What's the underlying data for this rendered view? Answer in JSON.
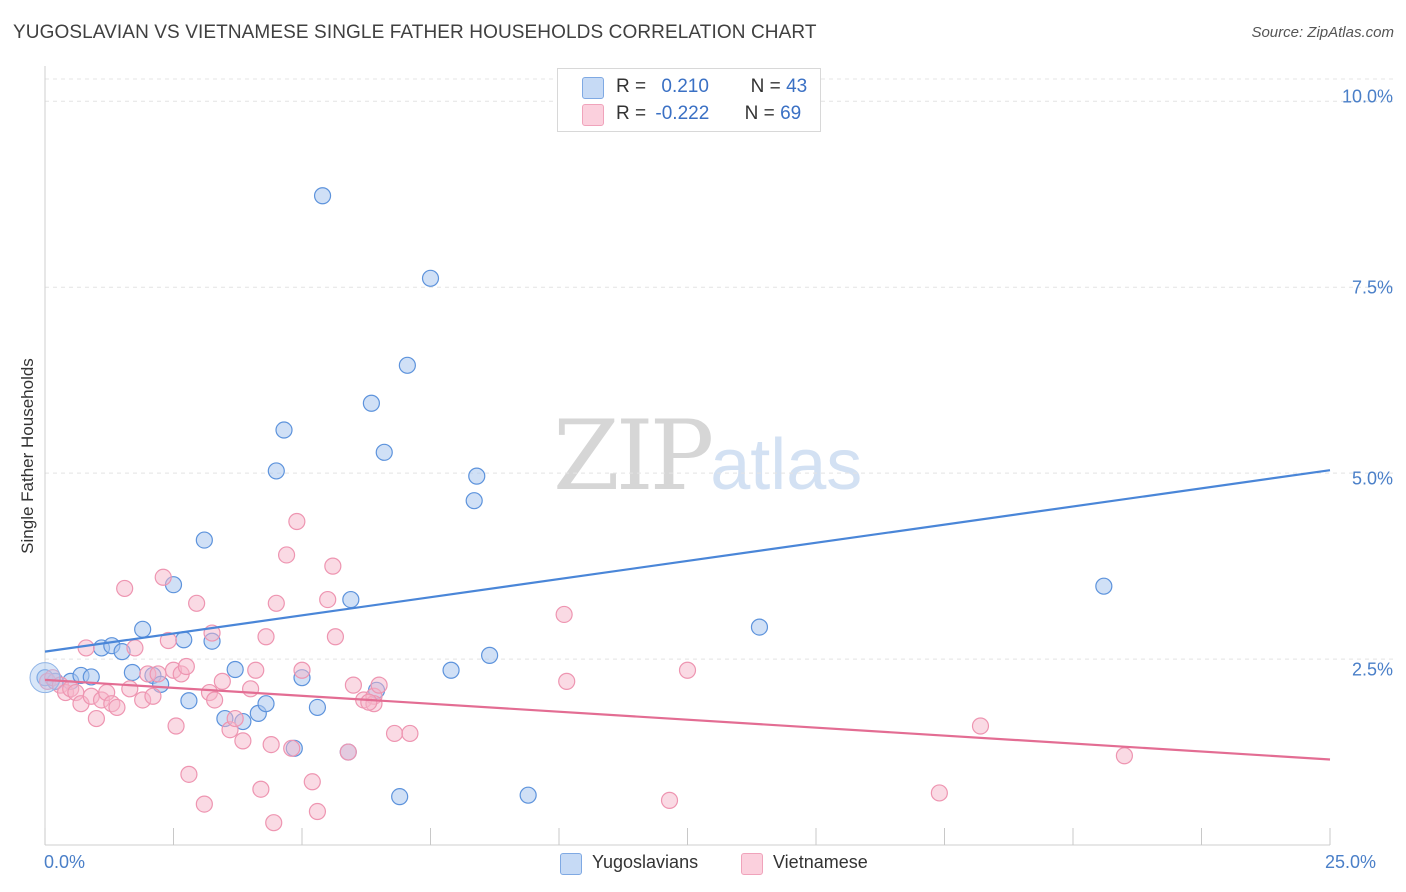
{
  "header": {
    "title": "YUGOSLAVIAN VS VIETNAMESE SINGLE FATHER HOUSEHOLDS CORRELATION CHART",
    "source": "Source: ZipAtlas.com"
  },
  "watermark": {
    "zip": "ZIP",
    "atlas": "atlas"
  },
  "legend": {
    "rows": [
      {
        "r_label": "R =",
        "r_value": "0.210",
        "n_label": "N =",
        "n_value": "43",
        "color": "#a9c7ef"
      },
      {
        "r_label": "R =",
        "r_value": "-0.222",
        "n_label": "N =",
        "n_value": "69",
        "color": "#f6b6c9"
      }
    ]
  },
  "bottom_legend": [
    {
      "label": "Yugoslavians",
      "color": "#a9c7ef"
    },
    {
      "label": "Vietnamese",
      "color": "#f6b6c9"
    }
  ],
  "axes": {
    "ylabel": "Single Father Households",
    "yticks": [
      "10.0%",
      "7.5%",
      "5.0%",
      "2.5%"
    ],
    "xticks": [
      "0.0%",
      "25.0%"
    ]
  },
  "chart_data": {
    "type": "scatter",
    "title": "YUGOSLAVIAN VS VIETNAMESE SINGLE FATHER HOUSEHOLDS CORRELATION CHART",
    "xlabel": "",
    "ylabel": "Single Father Households",
    "xlim": [
      0,
      25
    ],
    "ylim": [
      0,
      10.3
    ],
    "x_unit": "%",
    "y_unit": "%",
    "grid": true,
    "legend_placement": "top-center",
    "series": [
      {
        "name": "Yugoslavians",
        "color": "#4a86d8",
        "fill": "#a9c7ef",
        "trend": {
          "x": [
            0,
            25
          ],
          "y": [
            2.6,
            5.04
          ]
        },
        "points": [
          [
            0.0,
            2.25
          ],
          [
            0.2,
            2.2
          ],
          [
            0.5,
            2.2
          ],
          [
            0.7,
            2.28
          ],
          [
            0.9,
            2.26
          ],
          [
            1.1,
            2.65
          ],
          [
            1.3,
            2.68
          ],
          [
            1.5,
            2.6
          ],
          [
            1.7,
            2.32
          ],
          [
            1.9,
            2.9
          ],
          [
            2.1,
            2.28
          ],
          [
            2.25,
            2.16
          ],
          [
            2.5,
            3.5
          ],
          [
            2.7,
            2.76
          ],
          [
            2.8,
            1.94
          ],
          [
            3.1,
            4.1
          ],
          [
            3.25,
            2.74
          ],
          [
            3.5,
            1.7
          ],
          [
            3.7,
            2.36
          ],
          [
            3.85,
            1.66
          ],
          [
            4.15,
            1.77
          ],
          [
            4.3,
            1.9
          ],
          [
            4.5,
            5.03
          ],
          [
            4.65,
            5.58
          ],
          [
            4.85,
            1.3
          ],
          [
            5.0,
            2.25
          ],
          [
            5.3,
            1.85
          ],
          [
            5.4,
            8.73
          ],
          [
            5.9,
            1.25
          ],
          [
            5.95,
            3.3
          ],
          [
            6.35,
            5.94
          ],
          [
            6.6,
            5.28
          ],
          [
            6.9,
            0.65
          ],
          [
            7.05,
            6.45
          ],
          [
            7.5,
            7.62
          ],
          [
            7.9,
            2.35
          ],
          [
            8.35,
            4.63
          ],
          [
            8.4,
            4.96
          ],
          [
            8.65,
            2.55
          ],
          [
            9.4,
            0.67
          ],
          [
            13.9,
            2.93
          ],
          [
            20.6,
            3.48
          ],
          [
            6.45,
            2.08
          ]
        ]
      },
      {
        "name": "Vietnamese",
        "color": "#e36d93",
        "fill": "#f6b6c9",
        "trend": {
          "x": [
            0,
            25
          ],
          "y": [
            2.22,
            1.15
          ]
        },
        "points": [
          [
            0.05,
            2.2
          ],
          [
            0.15,
            2.25
          ],
          [
            0.3,
            2.15
          ],
          [
            0.4,
            2.05
          ],
          [
            0.5,
            2.1
          ],
          [
            0.6,
            2.05
          ],
          [
            0.7,
            1.9
          ],
          [
            0.8,
            2.65
          ],
          [
            0.9,
            2.0
          ],
          [
            1.0,
            1.7
          ],
          [
            1.1,
            1.95
          ],
          [
            1.2,
            2.05
          ],
          [
            1.3,
            1.9
          ],
          [
            1.4,
            1.85
          ],
          [
            1.55,
            3.45
          ],
          [
            1.65,
            2.1
          ],
          [
            1.75,
            2.65
          ],
          [
            1.9,
            1.95
          ],
          [
            2.0,
            2.3
          ],
          [
            2.1,
            2.0
          ],
          [
            2.2,
            2.3
          ],
          [
            2.3,
            3.6
          ],
          [
            2.4,
            2.75
          ],
          [
            2.5,
            2.35
          ],
          [
            2.55,
            1.6
          ],
          [
            2.65,
            2.3
          ],
          [
            2.75,
            2.4
          ],
          [
            2.8,
            0.95
          ],
          [
            2.95,
            3.25
          ],
          [
            3.1,
            0.55
          ],
          [
            3.2,
            2.05
          ],
          [
            3.25,
            2.85
          ],
          [
            3.3,
            1.95
          ],
          [
            3.45,
            2.2
          ],
          [
            3.6,
            1.55
          ],
          [
            3.7,
            1.7
          ],
          [
            3.85,
            1.4
          ],
          [
            4.0,
            2.1
          ],
          [
            4.1,
            2.35
          ],
          [
            4.2,
            0.75
          ],
          [
            4.3,
            2.8
          ],
          [
            4.4,
            1.35
          ],
          [
            4.45,
            0.3
          ],
          [
            4.5,
            3.25
          ],
          [
            4.7,
            3.9
          ],
          [
            4.8,
            1.3
          ],
          [
            4.9,
            4.35
          ],
          [
            5.0,
            2.35
          ],
          [
            5.2,
            0.85
          ],
          [
            5.3,
            0.45
          ],
          [
            5.5,
            3.3
          ],
          [
            5.6,
            3.75
          ],
          [
            5.65,
            2.8
          ],
          [
            5.9,
            1.25
          ],
          [
            6.0,
            2.15
          ],
          [
            6.2,
            1.95
          ],
          [
            6.4,
            2.0
          ],
          [
            6.5,
            2.15
          ],
          [
            6.8,
            1.5
          ],
          [
            7.1,
            1.5
          ],
          [
            6.4,
            1.9
          ],
          [
            10.1,
            3.1
          ],
          [
            10.15,
            2.2
          ],
          [
            12.15,
            0.6
          ],
          [
            12.5,
            2.35
          ],
          [
            17.4,
            0.7
          ],
          [
            18.2,
            1.6
          ],
          [
            21.0,
            1.2
          ],
          [
            6.3,
            1.92
          ]
        ]
      }
    ]
  }
}
